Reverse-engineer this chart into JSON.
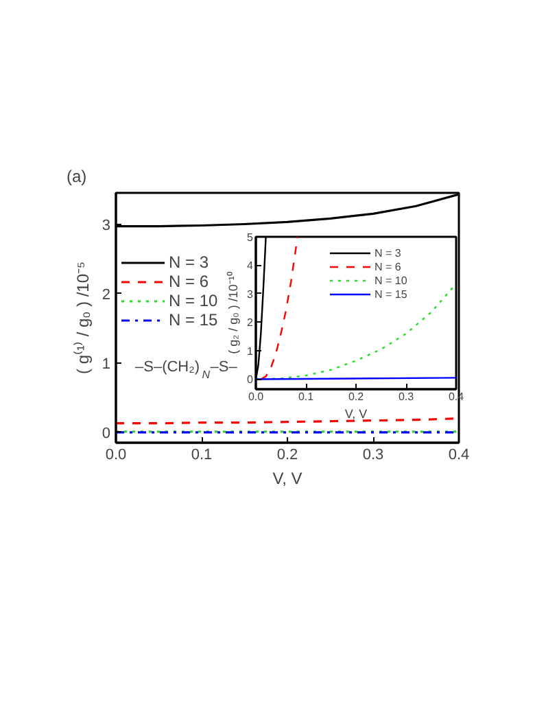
{
  "chart_data": [
    {
      "type": "line",
      "xlabel": "V, V",
      "ylabel": "( g⁽¹⁾ / g₀ ) /10⁻⁵",
      "xlim": [
        0,
        0.4
      ],
      "ylim": [
        -0.15,
        3.45
      ],
      "xticks": [
        {
          "value": 0,
          "label": "0.0"
        },
        0.1,
        0.2,
        0.3,
        0.4
      ],
      "yticks": [
        0,
        1,
        2,
        3
      ],
      "grid": false,
      "legend": "top left",
      "annotations": [
        "(a)",
        "–S–(CH₂)$_{N}$–S–"
      ],
      "series": [
        {
          "name": "N = 3",
          "color": "#000000",
          "line_style": "solid",
          "x": [
            0,
            0.05,
            0.1,
            0.15,
            0.2,
            0.25,
            0.3,
            0.35,
            0.4
          ],
          "values": [
            2.97,
            2.97,
            2.98,
            3.0,
            3.03,
            3.08,
            3.15,
            3.26,
            3.43
          ]
        },
        {
          "name": "N = 6",
          "color": "#ff0000",
          "line_style": "dashed",
          "x": [
            0,
            0.05,
            0.1,
            0.15,
            0.2,
            0.25,
            0.3,
            0.35,
            0.4
          ],
          "values": [
            0.13,
            0.13,
            0.14,
            0.14,
            0.15,
            0.16,
            0.17,
            0.18,
            0.2
          ]
        },
        {
          "name": "N = 10",
          "color": "#22dd22",
          "line_style": "dotted",
          "x": [
            0,
            0.4
          ],
          "values": [
            0.01,
            0.01
          ]
        },
        {
          "name": "N = 15",
          "color": "#0000ff",
          "line_style": "dashdot",
          "x": [
            0,
            0.4
          ],
          "values": [
            0,
            0
          ]
        }
      ]
    },
    {
      "type": "line",
      "xlabel": "V, V",
      "ylabel": "( g₂ / g₀ ) /10⁻¹⁰",
      "xlim": [
        0,
        0.4
      ],
      "ylim": [
        -0.35,
        5
      ],
      "xticks": [
        {
          "value": 0,
          "label": "0.0"
        },
        0.1,
        0.2,
        0.3,
        0.4
      ],
      "yticks": [
        0,
        1,
        2,
        3,
        4,
        5
      ],
      "grid": false,
      "legend": "top right",
      "series": [
        {
          "name": "N = 3",
          "color": "#000000",
          "line_style": "solid",
          "x": [
            0,
            0.005,
            0.01,
            0.015,
            0.02
          ],
          "values": [
            0,
            0.5,
            1.6,
            3.2,
            5
          ]
        },
        {
          "name": "N = 6",
          "color": "#ff0000",
          "line_style": "dashed",
          "x": [
            0.01,
            0.02,
            0.03,
            0.04,
            0.05,
            0.06,
            0.07,
            0.08,
            0.083
          ],
          "values": [
            0,
            0.1,
            0.4,
            0.9,
            1.6,
            2.4,
            3.4,
            4.6,
            5
          ]
        },
        {
          "name": "N = 10",
          "color": "#22dd22",
          "line_style": "dotted",
          "x": [
            0,
            0.05,
            0.1,
            0.15,
            0.2,
            0.25,
            0.3,
            0.35,
            0.4
          ],
          "values": [
            0,
            0.03,
            0.13,
            0.33,
            0.65,
            1.05,
            1.6,
            2.35,
            3.35
          ]
        },
        {
          "name": "N = 15",
          "color": "#0000ff",
          "line_style": "solid",
          "x": [
            0,
            0.4
          ],
          "values": [
            0,
            0.05
          ]
        }
      ]
    }
  ]
}
